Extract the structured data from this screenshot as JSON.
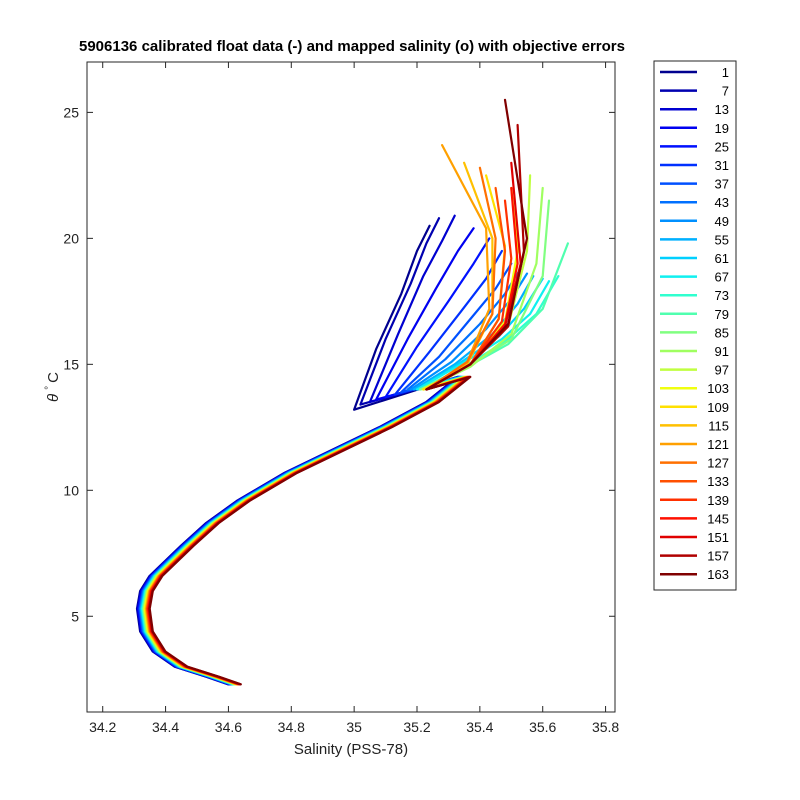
{
  "chart_data": {
    "type": "line",
    "title": "5906136 calibrated float data (-) and mapped salinity (o) with objective errors",
    "xlabel": "Salinity (PSS-78)",
    "ylabel_symbol": "θ",
    "ylabel_degree": "°",
    "ylabel_unit": "C",
    "xlim": [
      34.15,
      35.83
    ],
    "ylim": [
      1.2,
      27.0
    ],
    "xticks": [
      34.2,
      34.4,
      34.6,
      34.8,
      35.0,
      35.2,
      35.4,
      35.6,
      35.8
    ],
    "xtick_labels": [
      "34.2",
      "34.4",
      "34.6",
      "34.8",
      "35",
      "35.2",
      "35.4",
      "35.6",
      "35.8"
    ],
    "yticks": [
      5,
      10,
      15,
      20,
      25
    ],
    "ytick_labels": [
      "5",
      "10",
      "15",
      "20",
      "25"
    ],
    "grid": false,
    "legend_position": "outside-right",
    "colormap": "jet",
    "common_profile": {
      "salinity": [
        34.62,
        34.55,
        34.45,
        34.38,
        34.34,
        34.33,
        34.34,
        34.37,
        34.42,
        34.47,
        34.55,
        34.65,
        34.8,
        34.95,
        35.1,
        35.25,
        35.35
      ],
      "theta": [
        2.3,
        2.6,
        3.0,
        3.6,
        4.4,
        5.3,
        6.0,
        6.6,
        7.2,
        7.8,
        8.7,
        9.6,
        10.7,
        11.6,
        12.5,
        13.5,
        14.5
      ]
    },
    "series": [
      {
        "name": "1",
        "color": "#00008f",
        "upper": {
          "salinity": [
            35.0,
            35.07,
            35.15,
            35.2,
            35.24
          ],
          "theta": [
            13.2,
            15.6,
            17.8,
            19.5,
            20.5
          ]
        }
      },
      {
        "name": "7",
        "color": "#0000b0",
        "upper": {
          "salinity": [
            35.02,
            35.1,
            35.18,
            35.23,
            35.27
          ],
          "theta": [
            13.4,
            16.0,
            18.2,
            19.8,
            20.8
          ]
        }
      },
      {
        "name": "13",
        "color": "#0000d0",
        "upper": {
          "salinity": [
            35.05,
            35.14,
            35.22,
            35.28,
            35.32
          ],
          "theta": [
            13.5,
            16.2,
            18.5,
            19.9,
            20.9
          ]
        }
      },
      {
        "name": "19",
        "color": "#0000f0",
        "upper": {
          "salinity": [
            35.07,
            35.17,
            35.26,
            35.33,
            35.38
          ],
          "theta": [
            13.6,
            16.0,
            18.0,
            19.5,
            20.4
          ]
        }
      },
      {
        "name": "25",
        "color": "#0010ff",
        "upper": {
          "salinity": [
            35.1,
            35.2,
            35.3,
            35.38,
            35.43
          ],
          "theta": [
            13.7,
            15.7,
            17.5,
            19.0,
            20.0
          ]
        }
      },
      {
        "name": "31",
        "color": "#0030ff",
        "upper": {
          "salinity": [
            35.13,
            35.24,
            35.34,
            35.42,
            35.47
          ],
          "theta": [
            13.8,
            15.5,
            17.1,
            18.4,
            19.5
          ]
        }
      },
      {
        "name": "37",
        "color": "#0050ff",
        "upper": {
          "salinity": [
            35.15,
            35.27,
            35.37,
            35.45,
            35.5
          ],
          "theta": [
            13.9,
            15.3,
            16.8,
            18.0,
            19.0
          ]
        }
      },
      {
        "name": "43",
        "color": "#0070ff",
        "upper": {
          "salinity": [
            35.17,
            35.29,
            35.4,
            35.48,
            35.53
          ],
          "theta": [
            14.0,
            15.2,
            16.6,
            17.8,
            18.8
          ]
        }
      },
      {
        "name": "49",
        "color": "#0090ff",
        "upper": {
          "salinity": [
            35.18,
            35.31,
            35.42,
            35.5,
            35.55
          ],
          "theta": [
            14.0,
            15.1,
            16.4,
            17.6,
            18.6
          ]
        }
      },
      {
        "name": "55",
        "color": "#00b0ff",
        "upper": {
          "salinity": [
            35.19,
            35.32,
            35.44,
            35.52,
            35.57
          ],
          "theta": [
            14.0,
            15.0,
            16.2,
            17.4,
            18.5
          ]
        }
      },
      {
        "name": "61",
        "color": "#00d0ff",
        "upper": {
          "salinity": [
            35.2,
            35.33,
            35.46,
            35.54,
            35.6
          ],
          "theta": [
            14.0,
            15.0,
            16.1,
            17.2,
            18.4
          ]
        }
      },
      {
        "name": "67",
        "color": "#10f0f0",
        "upper": {
          "salinity": [
            35.2,
            35.34,
            35.47,
            35.56,
            35.62
          ],
          "theta": [
            14.0,
            15.0,
            16.0,
            17.0,
            18.3
          ]
        }
      },
      {
        "name": "73",
        "color": "#30ffcf",
        "upper": {
          "salinity": [
            35.21,
            35.35,
            35.48,
            35.58,
            35.65
          ],
          "theta": [
            14.0,
            14.9,
            15.9,
            17.0,
            18.5
          ]
        }
      },
      {
        "name": "79",
        "color": "#50ffaf",
        "upper": {
          "salinity": [
            35.21,
            35.36,
            35.49,
            35.6,
            35.68
          ],
          "theta": [
            14.0,
            14.9,
            15.8,
            17.2,
            19.8
          ]
        }
      },
      {
        "name": "85",
        "color": "#80ff80",
        "upper": {
          "salinity": [
            35.21,
            35.36,
            35.5,
            35.6,
            35.62
          ],
          "theta": [
            14.0,
            14.9,
            16.0,
            18.5,
            21.5
          ]
        }
      },
      {
        "name": "91",
        "color": "#a0ff60",
        "upper": {
          "salinity": [
            35.22,
            35.37,
            35.5,
            35.58,
            35.6
          ],
          "theta": [
            14.0,
            14.9,
            16.2,
            19.0,
            22.0
          ]
        }
      },
      {
        "name": "97",
        "color": "#c0ff40",
        "upper": {
          "salinity": [
            35.22,
            35.37,
            35.49,
            35.55,
            35.56
          ],
          "theta": [
            14.0,
            15.0,
            16.5,
            19.5,
            22.5
          ]
        }
      },
      {
        "name": "103",
        "color": "#f0ff10",
        "upper": {
          "salinity": [
            35.22,
            35.37,
            35.48,
            35.52,
            35.5
          ],
          "theta": [
            14.0,
            15.0,
            16.7,
            19.5,
            22.0
          ]
        }
      },
      {
        "name": "109",
        "color": "#ffe000",
        "upper": {
          "salinity": [
            35.22,
            35.37,
            35.46,
            35.48,
            35.42
          ],
          "theta": [
            14.0,
            15.0,
            16.8,
            19.7,
            22.5
          ]
        }
      },
      {
        "name": "115",
        "color": "#ffc000",
        "upper": {
          "salinity": [
            35.23,
            35.36,
            35.44,
            35.44,
            35.35
          ],
          "theta": [
            14.0,
            15.0,
            17.0,
            20.0,
            23.0
          ]
        }
      },
      {
        "name": "121",
        "color": "#ffa000",
        "upper": {
          "salinity": [
            35.23,
            35.36,
            35.43,
            35.42,
            35.28
          ],
          "theta": [
            14.0,
            15.1,
            17.2,
            20.4,
            23.7
          ]
        }
      },
      {
        "name": "127",
        "color": "#ff7000",
        "upper": {
          "salinity": [
            35.23,
            35.36,
            35.44,
            35.45,
            35.4
          ],
          "theta": [
            14.0,
            15.1,
            17.0,
            20.0,
            22.8
          ]
        }
      },
      {
        "name": "133",
        "color": "#ff5000",
        "upper": {
          "salinity": [
            35.23,
            35.37,
            35.46,
            35.48,
            35.45
          ],
          "theta": [
            14.0,
            15.0,
            16.8,
            19.5,
            22.0
          ]
        }
      },
      {
        "name": "139",
        "color": "#ff3000",
        "upper": {
          "salinity": [
            35.23,
            35.37,
            35.47,
            35.5,
            35.48
          ],
          "theta": [
            14.0,
            15.0,
            16.7,
            19.2,
            21.5
          ]
        }
      },
      {
        "name": "145",
        "color": "#ff1000",
        "upper": {
          "salinity": [
            35.23,
            35.37,
            35.48,
            35.52,
            35.5
          ],
          "theta": [
            14.0,
            15.0,
            16.6,
            19.0,
            22.0
          ]
        }
      },
      {
        "name": "151",
        "color": "#e00000",
        "upper": {
          "salinity": [
            35.23,
            35.37,
            35.48,
            35.53,
            35.5
          ],
          "theta": [
            14.0,
            15.0,
            16.5,
            19.0,
            23.0
          ]
        }
      },
      {
        "name": "157",
        "color": "#b00000",
        "upper": {
          "salinity": [
            35.23,
            35.37,
            35.49,
            35.54,
            35.52
          ],
          "theta": [
            14.0,
            15.0,
            16.5,
            19.5,
            24.5
          ]
        }
      },
      {
        "name": "163",
        "color": "#800000",
        "upper": {
          "salinity": [
            35.23,
            35.37,
            35.49,
            35.55,
            35.48
          ],
          "theta": [
            14.0,
            15.0,
            16.6,
            20.0,
            25.5
          ]
        }
      }
    ]
  }
}
